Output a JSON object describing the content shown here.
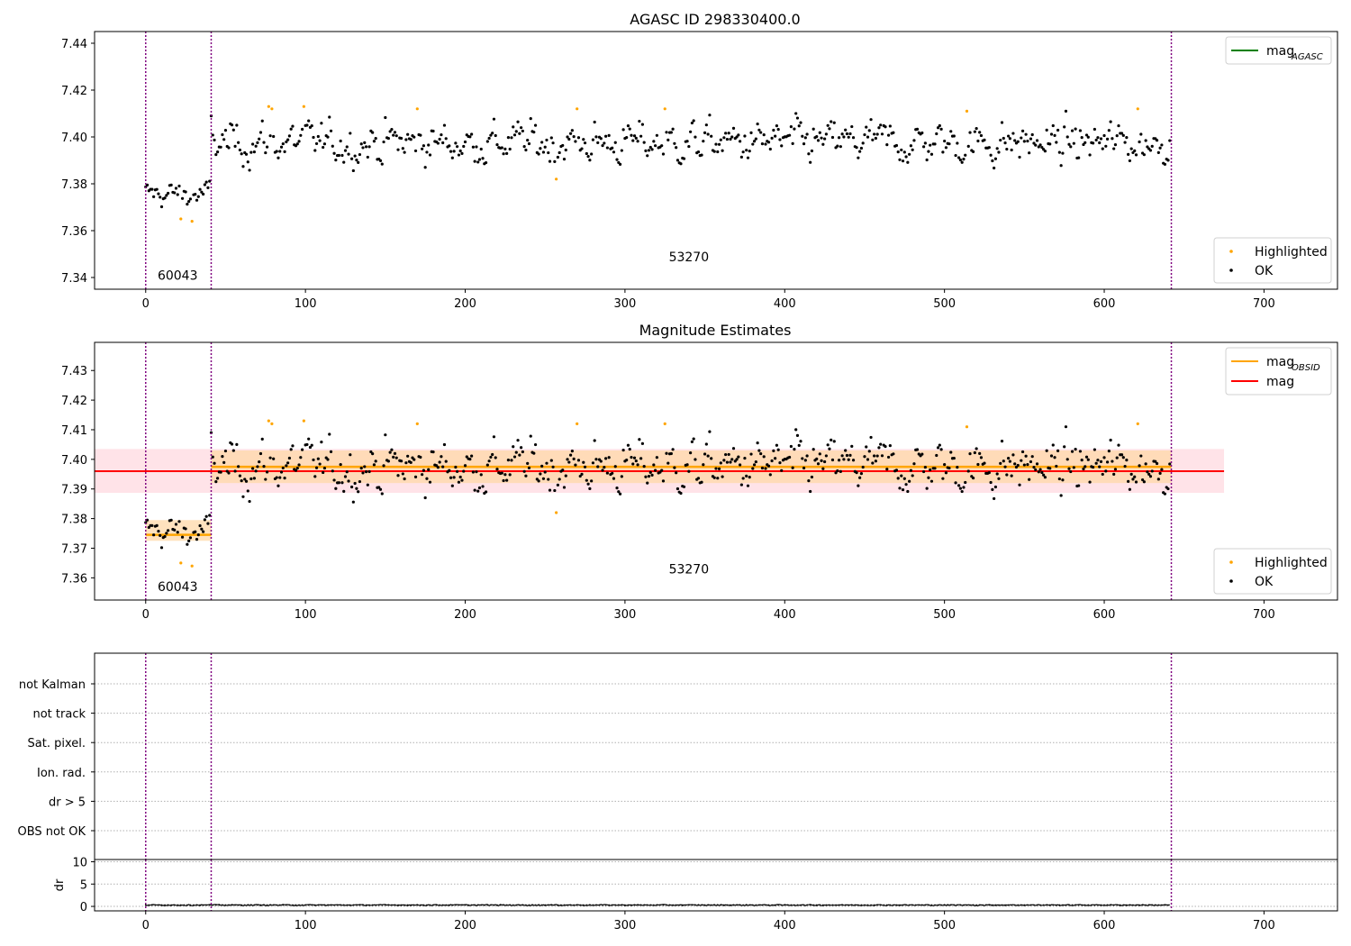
{
  "figure": {
    "title_top": "AGASC ID 298330400.0",
    "title_mid": "Magnitude Estimates"
  },
  "colors": {
    "ok": "#000000",
    "highlighted": "#ffa500",
    "mag": "#ff0000",
    "mag_obsid": "#ffa500",
    "mag_agasc": "#008000",
    "boundary": "#800080",
    "band_outer": "#ffc0cb",
    "band_inner": "#ffd8a8",
    "grid": "#b0b0b0"
  },
  "chart_data": [
    {
      "type": "scatter",
      "title": "AGASC ID 298330400.0",
      "xlim": [
        -32,
        746
      ],
      "ylim": [
        7.335,
        7.445
      ],
      "xticks": [
        0,
        100,
        200,
        300,
        400,
        500,
        600,
        700
      ],
      "yticks": [
        7.34,
        7.36,
        7.38,
        7.4,
        7.42,
        7.44
      ],
      "ytick_labels": [
        "7.34",
        "7.36",
        "7.38",
        "7.40",
        "7.42",
        "7.44"
      ],
      "legend_lines": [
        {
          "label": "mag",
          "sub": "AGASC"
        }
      ],
      "legend_points": [
        "Highlighted",
        "OK"
      ],
      "segment_boundaries": [
        0,
        41,
        642
      ],
      "segment_labels": [
        {
          "text": "60043",
          "x": 20,
          "y": 7.339
        },
        {
          "text": "53270",
          "x": 340,
          "y": 7.347
        }
      ],
      "highlighted_points": [
        [
          22,
          7.365
        ],
        [
          29,
          7.364
        ],
        [
          77,
          7.413
        ],
        [
          79,
          7.412
        ],
        [
          99,
          7.413
        ],
        [
          170,
          7.412
        ],
        [
          257,
          7.382
        ],
        [
          270,
          7.412
        ],
        [
          325,
          7.412
        ],
        [
          514,
          7.411
        ],
        [
          621,
          7.412
        ]
      ]
    },
    {
      "type": "scatter",
      "title": "Magnitude Estimates",
      "xlim": [
        -32,
        746
      ],
      "ylim": [
        7.3525,
        7.4395
      ],
      "xticks": [
        0,
        100,
        200,
        300,
        400,
        500,
        600,
        700
      ],
      "yticks": [
        7.36,
        7.37,
        7.38,
        7.39,
        7.4,
        7.41,
        7.42,
        7.43
      ],
      "ytick_labels": [
        "7.36",
        "7.37",
        "7.38",
        "7.39",
        "7.40",
        "7.41",
        "7.42",
        "7.43"
      ],
      "legend_lines": [
        {
          "label": "mag",
          "sub": "OBSID"
        },
        {
          "label": "mag",
          "sub": ""
        }
      ],
      "legend_points": [
        "Highlighted",
        "OK"
      ],
      "segment_boundaries": [
        0,
        41,
        642
      ],
      "segment_labels": [
        {
          "text": "60043",
          "x": 20,
          "y": 7.3555
        },
        {
          "text": "53270",
          "x": 340,
          "y": 7.3615
        }
      ],
      "mag": {
        "value": 7.396,
        "lo": 7.3887,
        "hi": 7.4035,
        "x_range": [
          -32,
          675
        ]
      },
      "mag_obsid": [
        {
          "x_range": [
            0,
            41
          ],
          "value": 7.3745,
          "lo": 7.3725,
          "hi": 7.3795
        },
        {
          "x_range": [
            41,
            642
          ],
          "value": 7.3975,
          "lo": 7.392,
          "hi": 7.403
        }
      ],
      "highlighted_points": [
        [
          22,
          7.365
        ],
        [
          29,
          7.364
        ],
        [
          77,
          7.413
        ],
        [
          79,
          7.412
        ],
        [
          99,
          7.413
        ],
        [
          170,
          7.412
        ],
        [
          257,
          7.382
        ],
        [
          270,
          7.412
        ],
        [
          325,
          7.412
        ],
        [
          514,
          7.411
        ],
        [
          621,
          7.412
        ]
      ]
    },
    {
      "type": "scatter",
      "title": "",
      "xlim": [
        -32,
        746
      ],
      "flag_labels": [
        "not Kalman",
        "not track",
        "Sat. pixel.",
        "Ion. rad.",
        "dr > 5",
        "OBS not OK"
      ],
      "segment_boundaries": [
        0,
        41,
        642
      ]
    },
    {
      "type": "line",
      "title": "",
      "ylabel": "dr",
      "xlim": [
        -32,
        746
      ],
      "ylim": [
        -1,
        10.5
      ],
      "xticks": [
        0,
        100,
        200,
        300,
        400,
        500,
        600,
        700
      ],
      "yticks": [
        0,
        5,
        10
      ],
      "ytick_labels": [
        "0",
        "5",
        "10"
      ],
      "dr_typical": 0.3,
      "segment_boundaries": [
        0,
        41,
        642
      ]
    }
  ]
}
